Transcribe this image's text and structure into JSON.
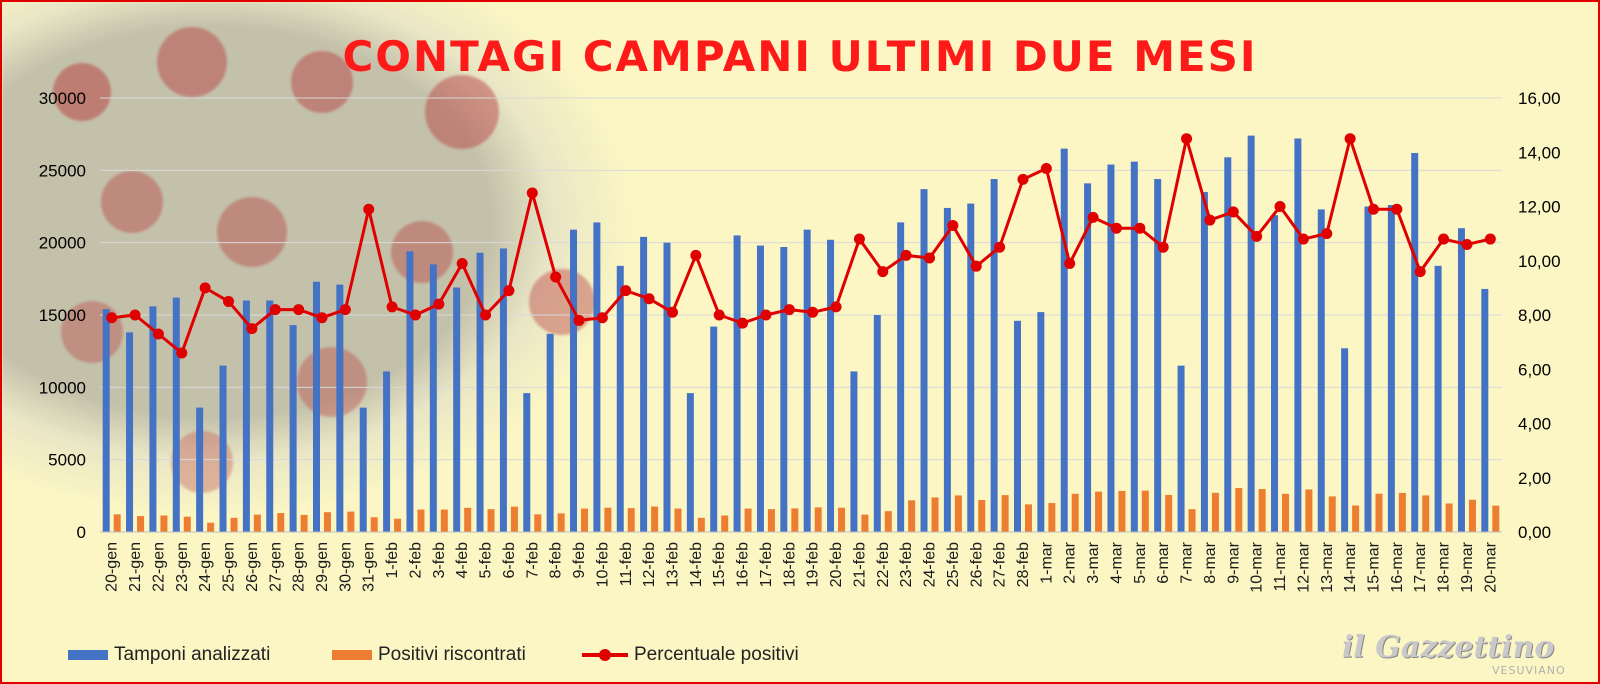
{
  "title": "CONTAGI CAMPANI ULTIMI DUE MESI",
  "legend": {
    "tamponi": "Tamponi analizzati",
    "positivi": "Positivi riscontrati",
    "percentuale": "Percentuale positivi"
  },
  "brand": {
    "name": "il Gazzettino",
    "sub": "VESUVIANO"
  },
  "colors": {
    "background": "#fbf6c4",
    "title": "#ff1a1a",
    "tamponi": "#4472c4",
    "positivi": "#ed7d31",
    "percentuale": "#e00000",
    "border": "#e00000"
  },
  "chart_data": {
    "type": "bar",
    "title": "CONTAGI CAMPANI ULTIMI DUE MESI",
    "categories": [
      "20-gen",
      "21-gen",
      "22-gen",
      "23-gen",
      "24-gen",
      "25-gen",
      "26-gen",
      "27-gen",
      "28-gen",
      "29-gen",
      "30-gen",
      "31-gen",
      "1-feb",
      "2-feb",
      "3-feb",
      "4-feb",
      "5-feb",
      "6-feb",
      "7-feb",
      "8-feb",
      "9-feb",
      "10-feb",
      "11-feb",
      "12-feb",
      "13-feb",
      "14-feb",
      "15-feb",
      "16-feb",
      "17-feb",
      "18-feb",
      "19-feb",
      "20-feb",
      "21-feb",
      "22-feb",
      "23-feb",
      "24-feb",
      "25-feb",
      "26-feb",
      "27-feb",
      "28-feb",
      "1-mar",
      "2-mar",
      "3-mar",
      "4-mar",
      "5-mar",
      "6-mar",
      "7-mar",
      "8-mar",
      "9-mar",
      "10-mar",
      "11-mar",
      "12-mar",
      "13-mar",
      "14-mar",
      "15-mar",
      "16-mar",
      "17-mar",
      "18-mar",
      "19-mar",
      "20-mar"
    ],
    "series": [
      {
        "name": "Tamponi analizzati",
        "type": "bar",
        "axis": "left",
        "values": [
          15400,
          13800,
          15600,
          16200,
          8600,
          11500,
          16000,
          16000,
          14300,
          17300,
          17100,
          8600,
          11100,
          19400,
          18500,
          16900,
          19300,
          19600,
          9600,
          13700,
          20900,
          21400,
          18400,
          20400,
          20000,
          9600,
          14200,
          20500,
          19800,
          19700,
          20900,
          20200,
          11100,
          15000,
          21400,
          23700,
          22400,
          22700,
          24400,
          14600,
          15200,
          26500,
          24100,
          25400,
          25600,
          24400,
          11500,
          23500,
          25900,
          27400,
          21900,
          27200,
          22300,
          12700,
          22500,
          22600,
          26200,
          18400,
          21000,
          16800
        ]
      },
      {
        "name": "Positivi riscontrati",
        "type": "bar",
        "axis": "left",
        "values": [
          1220,
          1100,
          1140,
          1060,
          640,
          980,
          1200,
          1310,
          1180,
          1370,
          1410,
          1020,
          920,
          1550,
          1550,
          1670,
          1580,
          1750,
          1220,
          1290,
          1620,
          1680,
          1650,
          1760,
          1620,
          980,
          1140,
          1620,
          1580,
          1630,
          1700,
          1680,
          1200,
          1440,
          2190,
          2390,
          2530,
          2210,
          2550,
          1910,
          2000,
          2640,
          2790,
          2840,
          2860,
          2560,
          1580,
          2710,
          3040,
          2970,
          2640,
          2940,
          2460,
          1830,
          2650,
          2700,
          2530,
          1970,
          2230,
          1820
        ]
      },
      {
        "name": "Percentuale positivi",
        "type": "line",
        "axis": "right",
        "values": [
          7.9,
          8.0,
          7.3,
          6.6,
          9.0,
          8.5,
          7.5,
          8.2,
          8.2,
          7.9,
          8.2,
          11.9,
          8.3,
          8.0,
          8.4,
          9.9,
          8.0,
          8.9,
          12.5,
          9.4,
          7.8,
          7.9,
          8.9,
          8.6,
          8.1,
          10.2,
          8.0,
          7.7,
          8.0,
          8.2,
          8.1,
          8.3,
          10.8,
          9.6,
          10.2,
          10.1,
          11.3,
          9.8,
          10.5,
          13.0,
          13.4,
          9.9,
          11.6,
          11.2,
          11.2,
          10.5,
          14.5,
          11.5,
          11.8,
          10.9,
          12.0,
          10.8,
          11.0,
          14.5,
          11.9,
          11.9,
          9.6,
          10.8,
          10.6,
          10.8
        ]
      }
    ],
    "y_left": {
      "min": 0,
      "max": 30000,
      "ticks": [
        "0",
        "5000",
        "10000",
        "15000",
        "20000",
        "25000",
        "30000"
      ]
    },
    "y_right": {
      "min": 0,
      "max": 16,
      "ticks": [
        "0,00",
        "2,00",
        "4,00",
        "6,00",
        "8,00",
        "10,00",
        "12,00",
        "14,00",
        "16,00"
      ]
    },
    "grid": true,
    "legend_position": "bottom-left"
  }
}
